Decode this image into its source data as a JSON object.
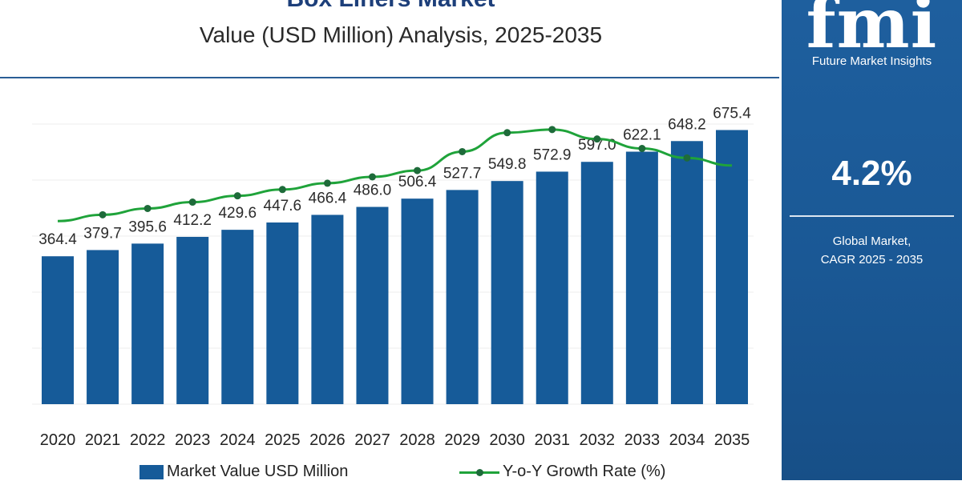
{
  "header": {
    "title": "Box Liners Market",
    "subtitle": "Value (USD Million) Analysis, 2025-2035"
  },
  "colors": {
    "bar": "#165b99",
    "line": "#1fa33a",
    "marker": "#1e6b3a",
    "panel": "#1b5a98"
  },
  "legend": {
    "bar_label": "Market Value USD Million",
    "line_label": "Y-o-Y Growth Rate (%)"
  },
  "side_panel": {
    "logo": "fmi",
    "logo_subtitle": "Future Market Insights",
    "cagr_value": "4.2%",
    "cagr_label_1": "Global Market,",
    "cagr_label_2": "CAGR 2025 - 2035"
  },
  "chart_data": {
    "type": "bar",
    "categories": [
      "2020",
      "2021",
      "2022",
      "2023",
      "2024",
      "2025",
      "2026",
      "2027",
      "2028",
      "2029",
      "2030",
      "2031",
      "2032",
      "2033",
      "2034",
      "2035"
    ],
    "series": [
      {
        "name": "Market Value USD Million",
        "type": "bar",
        "values": [
          364.4,
          379.7,
          395.6,
          412.2,
          429.6,
          447.6,
          466.4,
          486.0,
          506.4,
          527.7,
          549.8,
          572.9,
          597.0,
          622.1,
          648.2,
          675.4
        ],
        "labels": [
          "364.4",
          "379.7",
          "395.6",
          "412.2",
          "429.6",
          "447.6",
          "466.4",
          "486.0",
          "506.4",
          "527.7",
          "549.8",
          "572.9",
          "597.0",
          "622.1",
          "648.2",
          "675.4"
        ]
      },
      {
        "name": "Y-o-Y Growth Rate (%)",
        "type": "line",
        "values": [
          3.9,
          4.0,
          4.1,
          4.2,
          4.3,
          4.4,
          4.5,
          4.6,
          4.7,
          5.0,
          5.3,
          5.35,
          5.2,
          5.05,
          4.9,
          4.78
        ]
      }
    ],
    "ylim": [
      0,
      700
    ],
    "y2lim": [
      1.0,
      5.5
    ],
    "grid": true,
    "legend_position": "bottom"
  }
}
